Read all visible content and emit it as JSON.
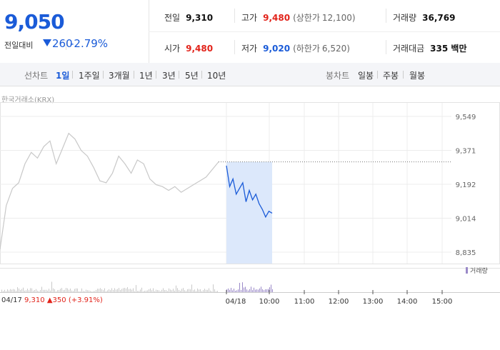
{
  "quote": {
    "price": "9,050",
    "change_label": "전일대비",
    "change": "260",
    "change_rate": "-2.79%"
  },
  "info": {
    "prev_close_label": "전일",
    "prev_close": "9,310",
    "high_label": "고가",
    "high": "9,480",
    "upper_limit_label": "(상한가",
    "upper_limit": "12,100)",
    "volume_label": "거래량",
    "volume": "36,769",
    "open_label": "시가",
    "open": "9,480",
    "low_label": "저가",
    "low": "9,020",
    "lower_limit_label": "(하한가",
    "lower_limit": "6,520)",
    "amount_label": "거래대금",
    "amount": "335 백만"
  },
  "tabs": {
    "line_label": "선차트",
    "line_items": [
      "1일",
      "1주일",
      "3개월",
      "1년",
      "3년",
      "5년",
      "10년"
    ],
    "candle_label": "봉차트",
    "candle_items": [
      "일봉",
      "주봉",
      "월봉"
    ]
  },
  "chart": {
    "exchange": "한국거래소(KRX)",
    "yticks": [
      "9,549",
      "9,371",
      "9,192",
      "9,014",
      "8,835"
    ],
    "xticks": [
      "04/18",
      "10:00",
      "11:00",
      "12:00",
      "13:00",
      "14:00",
      "15:00"
    ],
    "volume_legend": "거래량",
    "prev_day": {
      "date": "04/17",
      "close": "9,310",
      "change": "▲350",
      "rate": "(+3.91%)"
    },
    "colors": {
      "today_line": "#1a5bd8",
      "prev_line": "#c8c8c8",
      "area": "#dce8fb",
      "volume": "#9a89c8"
    }
  },
  "chart_data": {
    "type": "line",
    "ylim": [
      8835,
      9549
    ],
    "series": [
      {
        "values": [
          8850,
          9080,
          9170,
          9200,
          9300,
          9360,
          9330,
          9390,
          9420,
          9300,
          9380,
          9460,
          9430,
          9370,
          9340,
          9280,
          9210,
          9200,
          9250,
          9340,
          9300,
          9250,
          9320,
          9300,
          9220,
          9190,
          9180,
          9160,
          9180,
          9150,
          9170,
          9190,
          9210,
          9230,
          9270,
          9310
        ]
      },
      {
        "values": [
          9290,
          9180,
          9220,
          9140,
          9170,
          9200,
          9100,
          9160,
          9110,
          9140,
          9090,
          9060,
          9020,
          9050,
          9040
        ]
      }
    ]
  }
}
